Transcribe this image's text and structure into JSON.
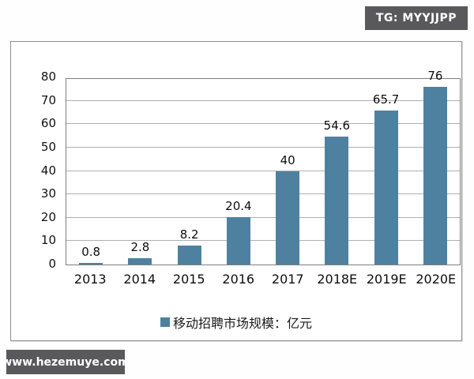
{
  "page": {
    "tg_badge": "TG: MYYJJPP",
    "watermark": "www.hezemuye.com"
  },
  "chart_data": {
    "type": "bar",
    "categories": [
      "2013",
      "2014",
      "2015",
      "2016",
      "2017",
      "2018E",
      "2019E",
      "2020E"
    ],
    "values": [
      0.8,
      2.8,
      8.2,
      20.4,
      40,
      54.6,
      65.7,
      76
    ],
    "value_labels": [
      "0.8",
      "2.8",
      "8.2",
      "20.4",
      "40",
      "54.6",
      "65.7",
      "76"
    ],
    "title": "",
    "xlabel": "",
    "ylabel": "",
    "legend": "移动招聘市场规模：亿元",
    "legend_position": "bottom",
    "y_ticks": [
      0,
      10,
      20,
      30,
      40,
      50,
      60,
      70,
      80
    ],
    "ylim": [
      0,
      80
    ],
    "grid": "horizontal",
    "bar_color": "#4e81a0",
    "gridline_color": "#b0b0b0"
  }
}
